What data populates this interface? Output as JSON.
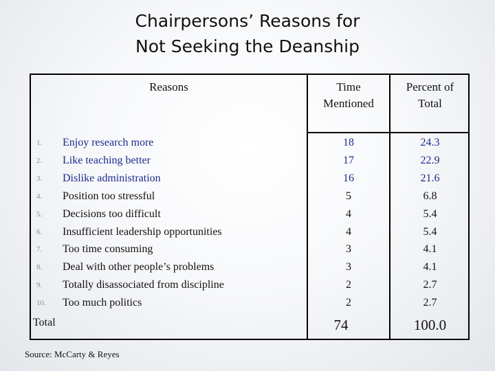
{
  "title": {
    "line1": "Chairpersons’ Reasons for",
    "line2": "Not Seeking the Deanship"
  },
  "table": {
    "headers": {
      "reasons": "Reasons",
      "time_mentioned_1": "Time",
      "time_mentioned_2": "Mentioned",
      "percent_1": "Percent of",
      "percent_2": "Total"
    },
    "rows": [
      {
        "num": "1.",
        "reason": "Enjoy research more",
        "count": "18",
        "percent": "24.3"
      },
      {
        "num": "2.",
        "reason": "Like teaching better",
        "count": "17",
        "percent": "22.9"
      },
      {
        "num": "3.",
        "reason": "Dislike administration",
        "count": "16",
        "percent": "21.6"
      },
      {
        "num": "4.",
        "reason": "Position too stressful",
        "count": "5",
        "percent": "6.8"
      },
      {
        "num": "5.",
        "reason": "Decisions too difficult",
        "count": "4",
        "percent": "5.4"
      },
      {
        "num": "6.",
        "reason": "Insufficient leadership opportunities",
        "count": "4",
        "percent": "5.4"
      },
      {
        "num": "7.",
        "reason": "Too time consuming",
        "count": "3",
        "percent": "4.1"
      },
      {
        "num": "8.",
        "reason": "Deal with other people’s problems",
        "count": "3",
        "percent": "4.1"
      },
      {
        "num": "9.",
        "reason": "Totally disassociated from discipline",
        "count": "2",
        "percent": "2.7"
      },
      {
        "num": "10.",
        "reason": "Too much politics",
        "count": "2",
        "percent": "2.7"
      }
    ],
    "total": {
      "label": "Total",
      "count": "74",
      "percent": "100.0"
    }
  },
  "source": "Source: McCarty & Reyes",
  "colors": {
    "highlight_text": "#1a2b8c",
    "border": "#000000"
  }
}
